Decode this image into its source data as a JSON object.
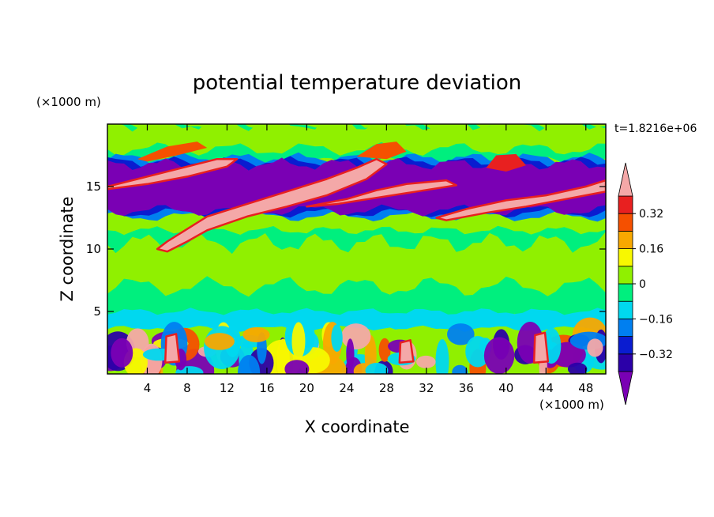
{
  "chart_data": {
    "type": "heatmap",
    "title": "potential temperature deviation",
    "xlabel": "X coordinate",
    "ylabel": "Z coordinate",
    "x_unit": "(×1000 m)",
    "y_unit": "(×1000 m)",
    "time_label": "t=1.8216e+06",
    "xlim": [
      0,
      50
    ],
    "ylim": [
      0,
      20
    ],
    "x_ticks": [
      4,
      8,
      12,
      16,
      20,
      24,
      28,
      32,
      36,
      40,
      44,
      48
    ],
    "y_ticks": [
      5,
      10,
      15
    ],
    "colorbar": {
      "levels": [
        -0.4,
        -0.32,
        -0.24,
        -0.16,
        -0.08,
        0,
        0.08,
        0.16,
        0.24,
        0.32,
        0.4
      ],
      "tick_values": [
        0.32,
        0.16,
        0,
        -0.16,
        -0.32
      ],
      "tick_labels": [
        "0.32",
        "0.16",
        "0",
        "−0.16",
        "−0.32"
      ],
      "colors": [
        "#7a00b4",
        "#2b00a8",
        "#0a1cd0",
        "#007ff0",
        "#00d8ef",
        "#00ef7e",
        "#90f000",
        "#f8f800",
        "#f8a800",
        "#f55000",
        "#e82020",
        "#f4a8a8"
      ],
      "extend": "both"
    },
    "bands": [
      {
        "name": "lower_layer_z_top",
        "value": 3.5
      },
      {
        "name": "mid_layer_z",
        "value": [
          4,
          12
        ]
      },
      {
        "name": "cold_layer_z",
        "value": [
          12,
          17
        ]
      }
    ]
  }
}
